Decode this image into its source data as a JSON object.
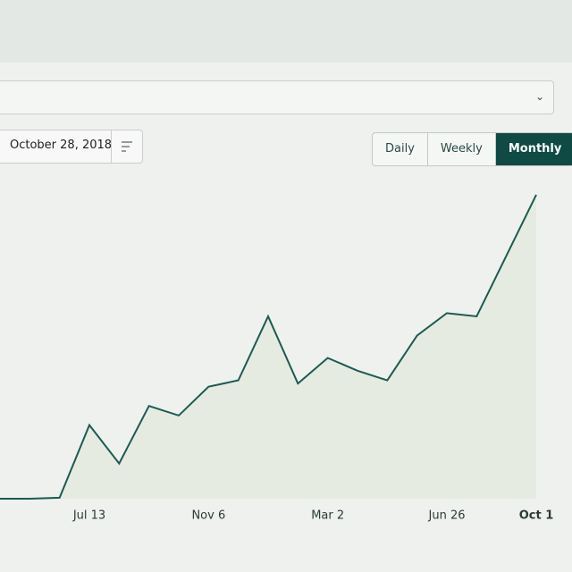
{
  "ui": {
    "date": "October 28, 2018",
    "buttons": [
      "Daily",
      "Weekly",
      "Monthly"
    ],
    "active_button": 2
  },
  "chart_data": {
    "type": "line",
    "categories": [
      null,
      null,
      null,
      "Jul 13",
      null,
      null,
      null,
      "Nov 6",
      null,
      null,
      null,
      "Mar 2",
      null,
      null,
      null,
      "Jun 26",
      null,
      null,
      "Oct 1"
    ],
    "values": [
      0,
      0,
      0.3,
      23,
      11,
      29,
      26,
      35,
      37,
      57,
      36,
      44,
      40,
      37,
      51,
      58,
      57,
      76,
      95
    ],
    "color": "#1d5a52",
    "ylim": [
      0,
      100
    ]
  }
}
